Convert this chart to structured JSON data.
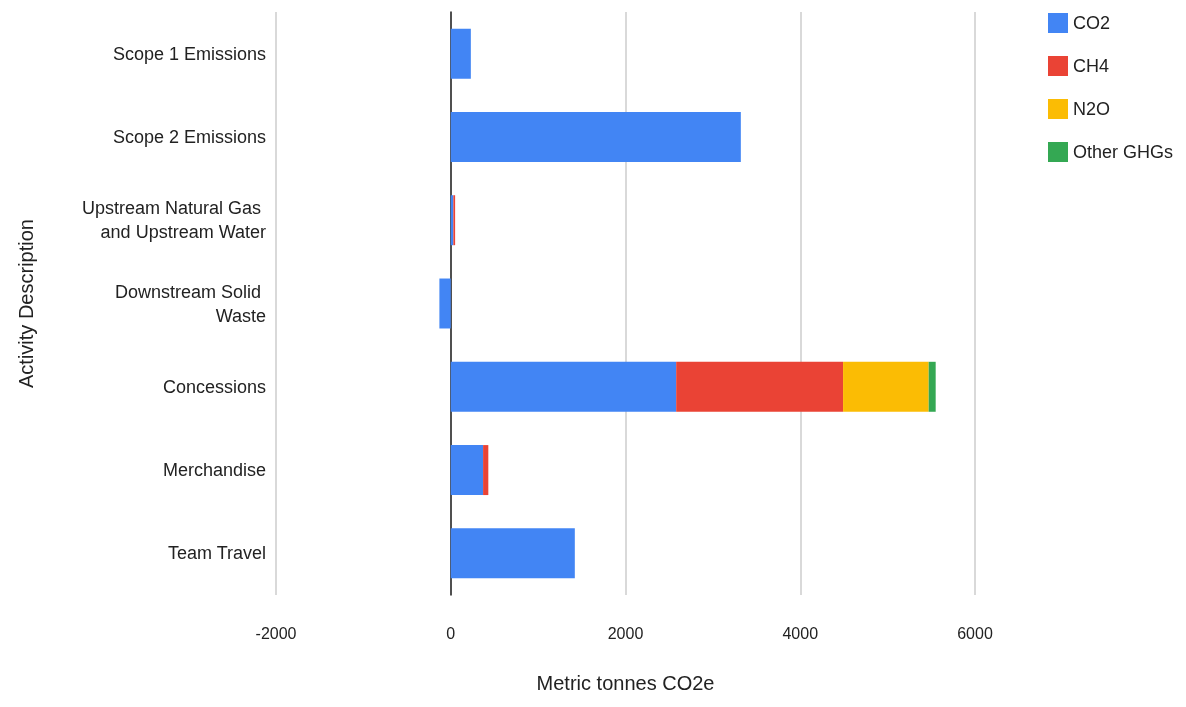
{
  "chart_data": {
    "type": "bar",
    "orientation": "horizontal",
    "stacked": true,
    "xlabel": "Metric tonnes CO2e",
    "ylabel": "Activity Description",
    "categories": [
      "Scope 1 Emissions",
      "Scope 2 Emissions",
      "Upstream Natural Gas and Upstream Water",
      "Downstream Solid Waste",
      "Concessions",
      "Merchandise",
      "Team Travel"
    ],
    "series": [
      {
        "name": "CO2",
        "color": "#4285f4",
        "values": [
          230,
          3320,
          30,
          -130,
          2580,
          370,
          1420
        ]
      },
      {
        "name": "CH4",
        "color": "#ea4335",
        "values": [
          0,
          0,
          20,
          0,
          1910,
          60,
          0
        ]
      },
      {
        "name": "N2O",
        "color": "#fbbc04",
        "values": [
          0,
          0,
          0,
          0,
          980,
          0,
          0
        ]
      },
      {
        "name": "Other GHGs",
        "color": "#34a853",
        "values": [
          0,
          0,
          0,
          0,
          80,
          0,
          0
        ]
      }
    ],
    "xlim": [
      -2000,
      6000
    ],
    "xticks": [
      -2000,
      0,
      2000,
      4000,
      6000
    ],
    "grid": "x",
    "legend": "top right"
  }
}
